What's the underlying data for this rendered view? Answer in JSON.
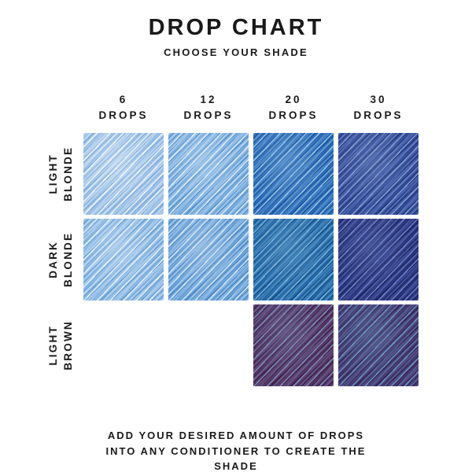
{
  "colors": {
    "background": "#ffffff",
    "text": "#1a1a1a"
  },
  "header": {
    "title": "DROP CHART",
    "subtitle": "CHOOSE YOUR SHADE"
  },
  "footer": {
    "lines": [
      "ADD YOUR DESIRED AMOUNT OF DROPS",
      "INTO ANY CONDITIONER TO CREATE THE",
      "SHADE"
    ]
  },
  "chart_data": {
    "type": "heatmap",
    "title": "DROP CHART",
    "subtitle": "CHOOSE YOUR SHADE",
    "note": "ADD YOUR DESIRED AMOUNT OF DROPS INTO ANY CONDITIONER TO CREATE THE SHADE",
    "columns": [
      {
        "amount": "6",
        "unit": "DROPS"
      },
      {
        "amount": "12",
        "unit": "DROPS"
      },
      {
        "amount": "20",
        "unit": "DROPS"
      },
      {
        "amount": "30",
        "unit": "DROPS"
      }
    ],
    "rows": [
      {
        "line1": "LIGHT",
        "line2": "BLONDE"
      },
      {
        "line1": "DARK",
        "line2": "BLONDE"
      },
      {
        "line1": "LIGHT",
        "line2": "BROWN"
      }
    ],
    "cells": [
      [
        {
          "shade": "light-blonde-6-drops",
          "base": "#bdd5ee",
          "mid": "#8fbae6",
          "light": "#f3f8fd",
          "dark": "#6598d1"
        },
        {
          "shade": "light-blonde-12-drops",
          "base": "#6ca7dc",
          "mid": "#97c2ea",
          "light": "#e6f1fb",
          "dark": "#4379ba"
        },
        {
          "shade": "light-blonde-20-drops",
          "base": "#2263b2",
          "mid": "#4285ca",
          "light": "#9ec8ea",
          "dark": "#123e80"
        },
        {
          "shade": "light-blonde-30-drops",
          "base": "#2a4496",
          "mid": "#4a66b2",
          "light": "#8aa2d2",
          "dark": "#172655"
        }
      ],
      [
        {
          "shade": "dark-blonde-6-drops",
          "base": "#7db1e1",
          "mid": "#a6cbee",
          "light": "#ecf4fb",
          "dark": "#5288c6"
        },
        {
          "shade": "dark-blonde-12-drops",
          "base": "#5e9bd5",
          "mid": "#88b9e7",
          "light": "#dcebf8",
          "dark": "#3a6fae"
        },
        {
          "shade": "dark-blonde-20-drops",
          "base": "#1b62a4",
          "mid": "#3b82bd",
          "light": "#7fb4d8",
          "dark": "#0d3b6b"
        },
        {
          "shade": "dark-blonde-30-drops",
          "base": "#232e78",
          "mid": "#3d4b9b",
          "light": "#7487c4",
          "dark": "#12173f"
        }
      ],
      [
        null,
        null,
        {
          "shade": "light-brown-20-drops",
          "base": "#4f2d58",
          "mid": "#65487f",
          "light": "#7f93bc",
          "dark": "#231330"
        },
        {
          "shade": "light-brown-30-drops",
          "base": "#433063",
          "mid": "#51508c",
          "light": "#6f9ac4",
          "dark": "#1f1640"
        }
      ]
    ]
  }
}
